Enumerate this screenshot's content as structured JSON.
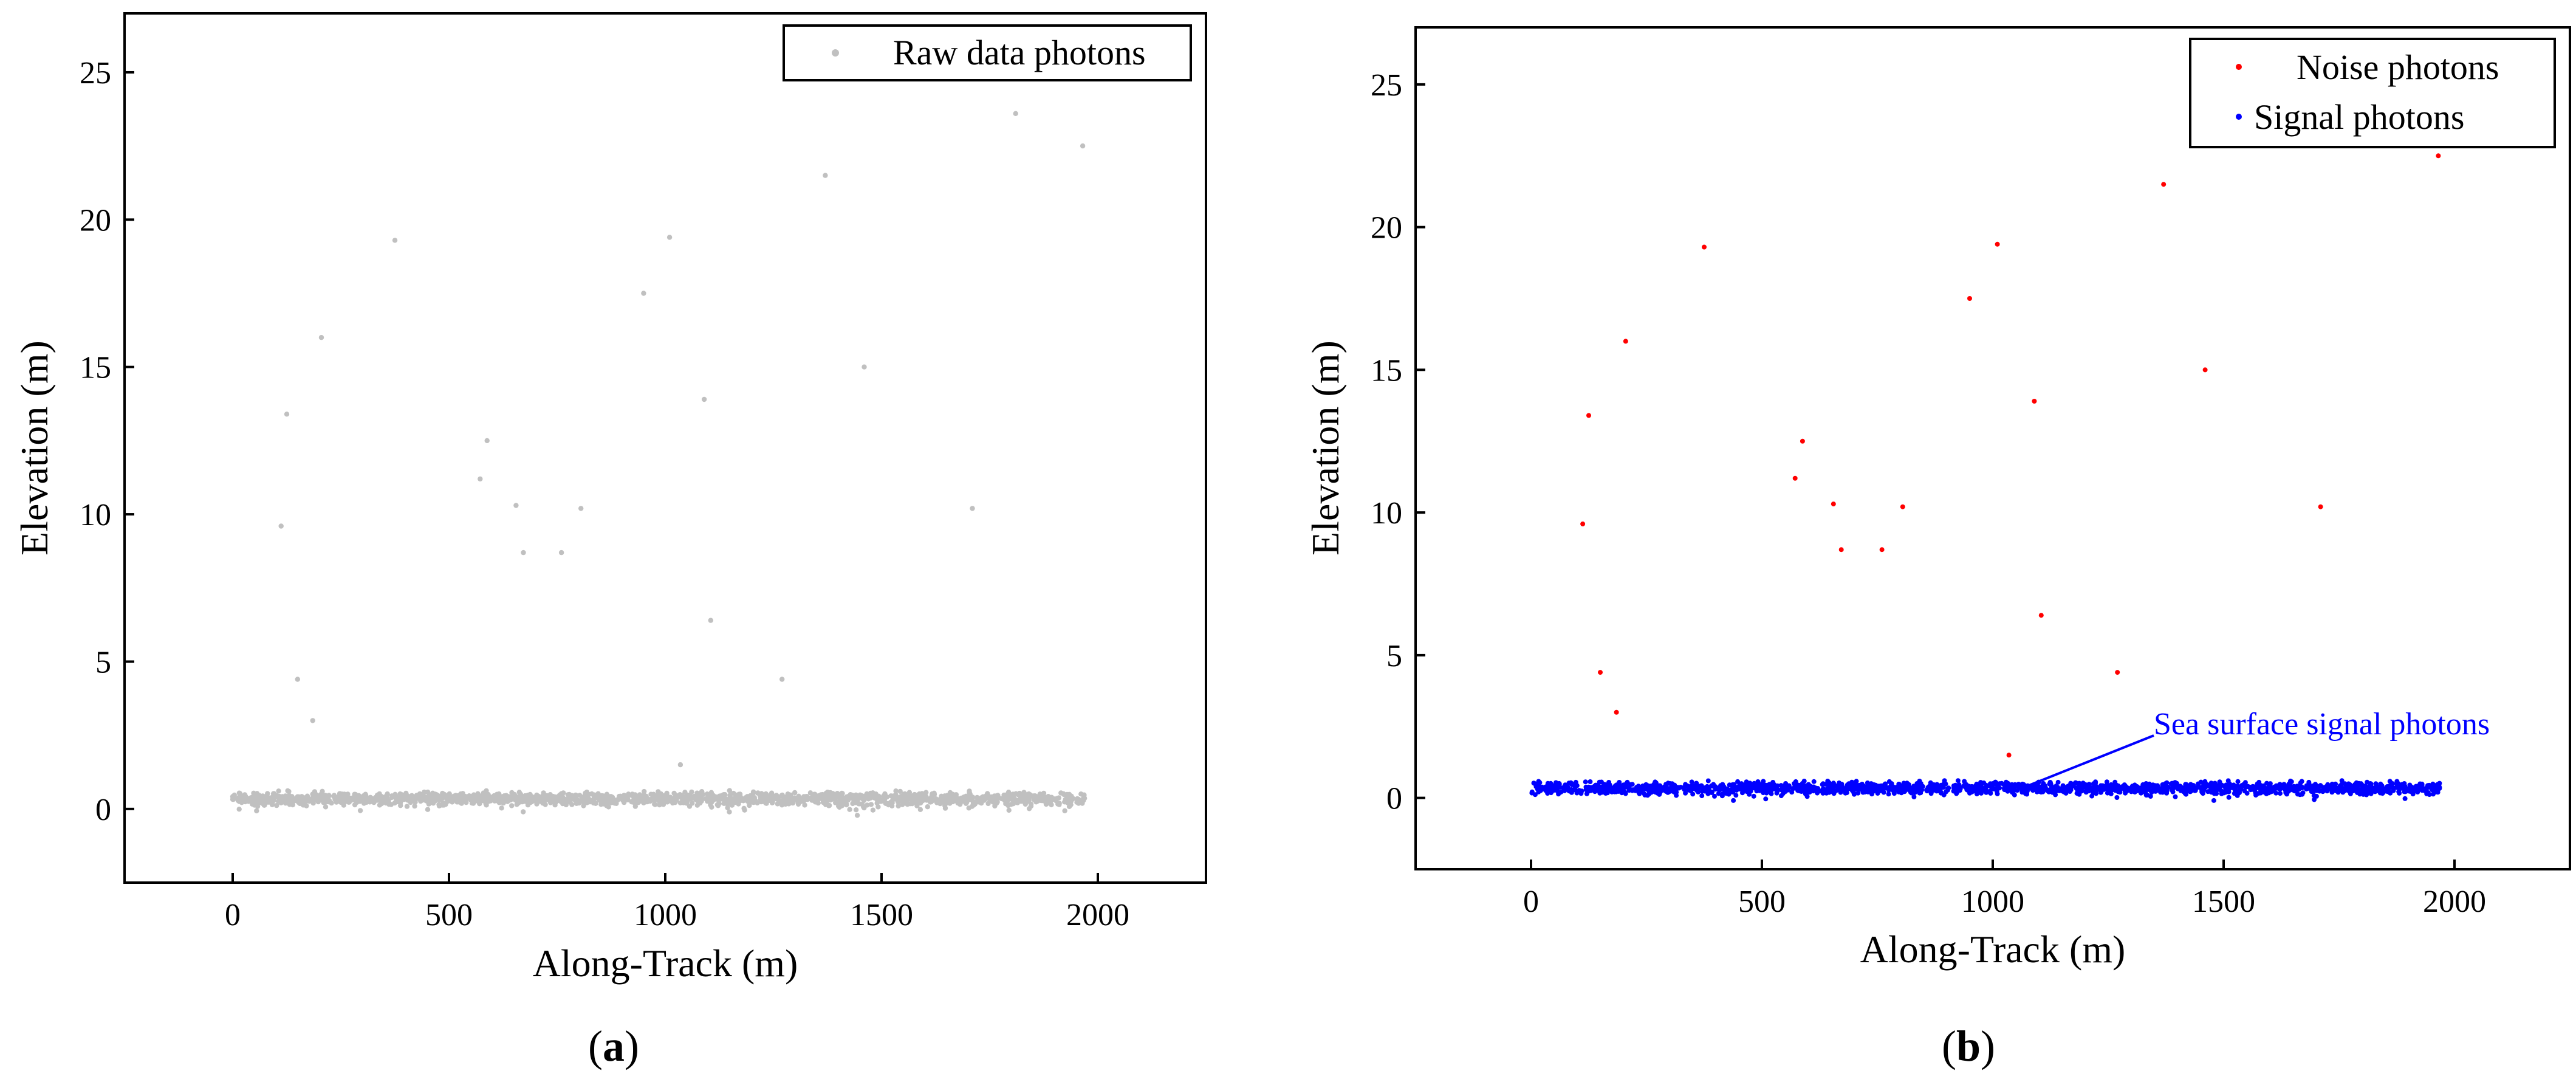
{
  "chart_data": [
    {
      "type": "scatter",
      "panel": "a",
      "caption_letter": "a",
      "xlabel": "Along-Track (m)",
      "ylabel": "Elevation (m)",
      "xlim": [
        -250,
        2250
      ],
      "ylim": [
        -2.5,
        27
      ],
      "xticks": [
        0,
        500,
        1000,
        1500,
        2000
      ],
      "yticks": [
        0,
        5,
        10,
        15,
        20,
        25
      ],
      "grid": false,
      "legend_position": "top-right",
      "series": [
        {
          "name": "Raw data photons",
          "color": "#c0c0c0",
          "band": {
            "x_start": 0,
            "x_end": 1970,
            "y_center": 0.35,
            "y_spread": 0.3,
            "count": 1800
          },
          "points": [
            [
              112,
              9.6
            ],
            [
              125,
              13.4
            ],
            [
              150,
              4.4
            ],
            [
              185,
              3.0
            ],
            [
              205,
              16.0
            ],
            [
              375,
              19.3
            ],
            [
              572,
              11.2
            ],
            [
              588,
              12.5
            ],
            [
              655,
              10.3
            ],
            [
              672,
              8.7
            ],
            [
              760,
              8.7
            ],
            [
              805,
              10.2
            ],
            [
              950,
              17.5
            ],
            [
              1010,
              19.4
            ],
            [
              1035,
              1.5
            ],
            [
              1090,
              13.9
            ],
            [
              1105,
              6.4
            ],
            [
              1270,
              4.4
            ],
            [
              1370,
              21.5
            ],
            [
              1460,
              15.0
            ],
            [
              1710,
              10.2
            ],
            [
              1810,
              23.6
            ],
            [
              1965,
              22.5
            ]
          ]
        }
      ]
    },
    {
      "type": "scatter",
      "panel": "b",
      "caption_letter": "b",
      "xlabel": "Along-Track (m)",
      "ylabel": "Elevation (m)",
      "xlim": [
        -250,
        2250
      ],
      "ylim": [
        -2.5,
        27
      ],
      "xticks": [
        0,
        500,
        1000,
        1500,
        2000
      ],
      "yticks": [
        0,
        5,
        10,
        15,
        20,
        25
      ],
      "grid": false,
      "legend_position": "top-right",
      "annotation": {
        "text": "Sea surface signal photons",
        "target": [
          1080,
          0.45
        ]
      },
      "series": [
        {
          "name": "Noise photons",
          "color": "#ff0000",
          "points": [
            [
              112,
              9.6
            ],
            [
              125,
              13.4
            ],
            [
              150,
              4.4
            ],
            [
              185,
              3.0
            ],
            [
              205,
              16.0
            ],
            [
              375,
              19.3
            ],
            [
              572,
              11.2
            ],
            [
              588,
              12.5
            ],
            [
              655,
              10.3
            ],
            [
              672,
              8.7
            ],
            [
              760,
              8.7
            ],
            [
              805,
              10.2
            ],
            [
              950,
              17.5
            ],
            [
              1010,
              19.4
            ],
            [
              1035,
              1.5
            ],
            [
              1090,
              13.9
            ],
            [
              1105,
              6.4
            ],
            [
              1270,
              4.4
            ],
            [
              1370,
              21.5
            ],
            [
              1460,
              15.0
            ],
            [
              1710,
              10.2
            ],
            [
              1965,
              22.5
            ]
          ]
        },
        {
          "name": "Signal photons",
          "color": "#0000ff",
          "band": {
            "x_start": 0,
            "x_end": 1970,
            "y_center": 0.35,
            "y_spread": 0.3,
            "count": 1800
          }
        }
      ]
    }
  ]
}
